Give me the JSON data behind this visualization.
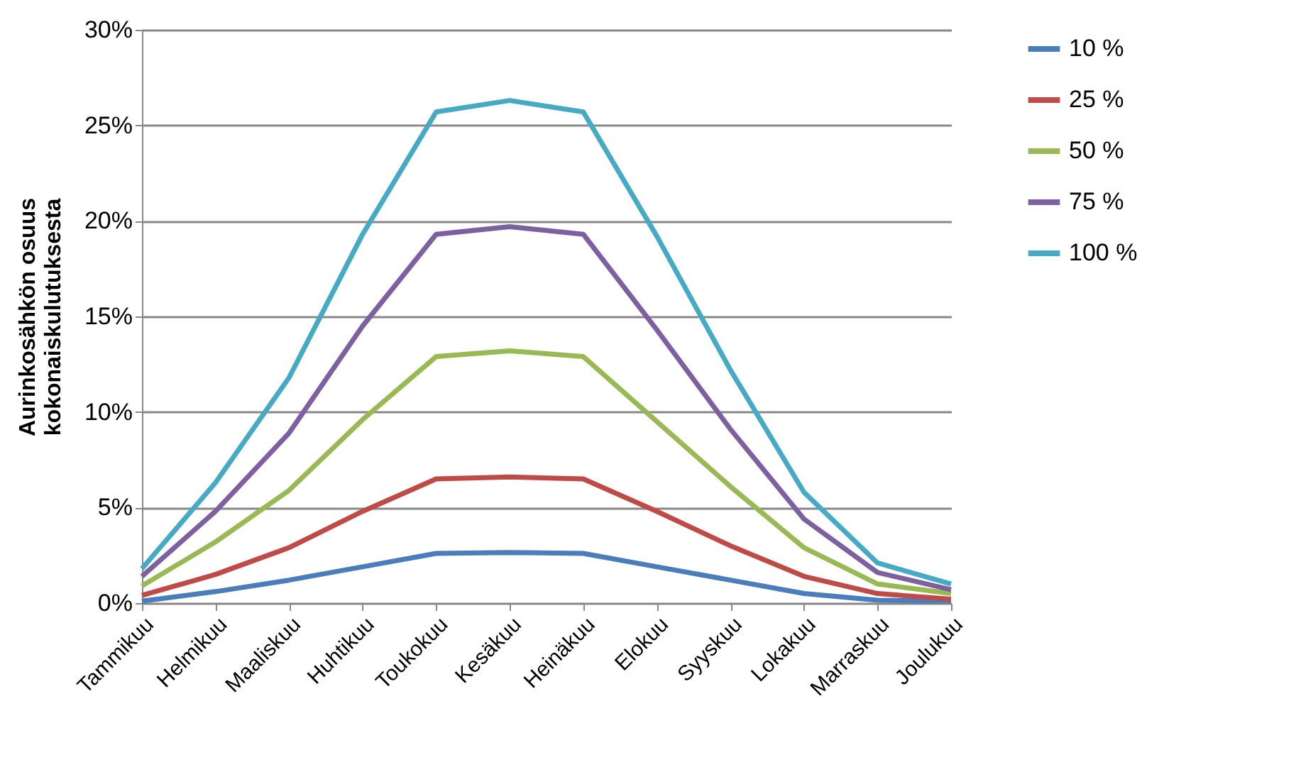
{
  "chart_data": {
    "type": "line",
    "ylabel": "Aurinkosähkön osuus\nkokonaiskulutuksesta",
    "categories": [
      "Tammikuu",
      "Helmikuu",
      "Maaliskuu",
      "Huhtikuu",
      "Toukokuu",
      "Kesäkuu",
      "Heinäkuu",
      "Elokuu",
      "Syyskuu",
      "Lokakuu",
      "Marraskuu",
      "Joulukuu"
    ],
    "series": [
      {
        "name": "10 %",
        "color": "#4a7ebb",
        "values": [
          0.1,
          0.6,
          1.2,
          1.9,
          2.6,
          2.65,
          2.6,
          1.9,
          1.2,
          0.5,
          0.15,
          0.1
        ]
      },
      {
        "name": "25 %",
        "color": "#be4b48",
        "values": [
          0.4,
          1.5,
          2.9,
          4.8,
          6.5,
          6.6,
          6.5,
          4.8,
          3.0,
          1.4,
          0.5,
          0.2
        ]
      },
      {
        "name": "50 %",
        "color": "#98b954",
        "values": [
          0.9,
          3.2,
          5.9,
          9.6,
          12.9,
          13.2,
          12.9,
          9.5,
          6.1,
          2.9,
          1.0,
          0.5
        ]
      },
      {
        "name": "75 %",
        "color": "#7d60a0",
        "values": [
          1.4,
          4.8,
          8.9,
          14.5,
          19.3,
          19.7,
          19.3,
          14.3,
          9.1,
          4.4,
          1.6,
          0.7
        ]
      },
      {
        "name": "100 %",
        "color": "#46aac5",
        "values": [
          1.8,
          6.3,
          11.8,
          19.3,
          25.7,
          26.3,
          25.7,
          19.2,
          12.2,
          5.8,
          2.1,
          1.0
        ]
      }
    ],
    "ylim": [
      0,
      30
    ],
    "yticks": [
      {
        "value": 0,
        "label": "0%"
      },
      {
        "value": 5,
        "label": "5%"
      },
      {
        "value": 10,
        "label": "10%"
      },
      {
        "value": 15,
        "label": "15%"
      },
      {
        "value": 20,
        "label": "20%"
      },
      {
        "value": 25,
        "label": "25%"
      },
      {
        "value": 30,
        "label": "30%"
      }
    ],
    "grid": "y",
    "legend": "right",
    "marker": "none",
    "line_style": "solid"
  }
}
